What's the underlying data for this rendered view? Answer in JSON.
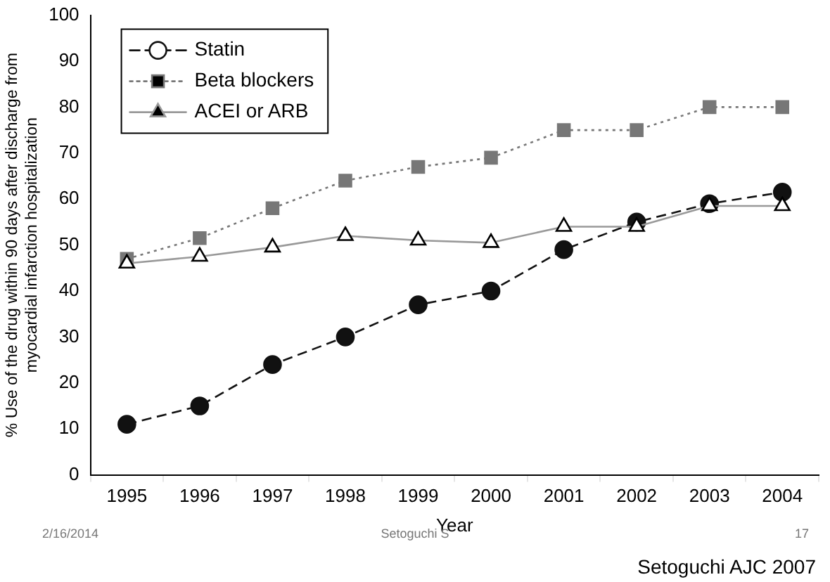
{
  "chart_data": {
    "type": "line",
    "xlabel": "Year",
    "ylabel": "% Use of the drug within 90 days after discharge from\nmyocardial infarction hospitalization",
    "categories": [
      "1995",
      "1996",
      "1997",
      "1998",
      "1999",
      "2000",
      "2001",
      "2002",
      "2003",
      "2004"
    ],
    "series": [
      {
        "name": "Statin",
        "color": "#111111",
        "marker": "circle",
        "line_style": "dashed",
        "values": [
          11,
          15,
          24,
          30,
          37,
          40,
          49,
          55,
          59,
          61.5
        ]
      },
      {
        "name": "Beta blockers",
        "color": "#777777",
        "marker": "square",
        "line_style": "dotted",
        "values": [
          47,
          51.5,
          58,
          64,
          67,
          69,
          75,
          75,
          80,
          80
        ]
      },
      {
        "name": "ACEI or ARB",
        "color": "#999999",
        "marker": "triangle",
        "line_style": "solid",
        "values": [
          46,
          47.5,
          49.5,
          52,
          51,
          50.5,
          54,
          54,
          58.5,
          58.5
        ]
      }
    ],
    "ylim": [
      0,
      100
    ],
    "yticks": [
      0,
      10,
      20,
      30,
      40,
      50,
      60,
      70,
      80,
      90,
      100
    ],
    "grid": false,
    "legend": "top left",
    "annotations": [
      "2/16/2014",
      "Setoguchi S",
      "17",
      "Setoguchi AJC 2007"
    ]
  }
}
